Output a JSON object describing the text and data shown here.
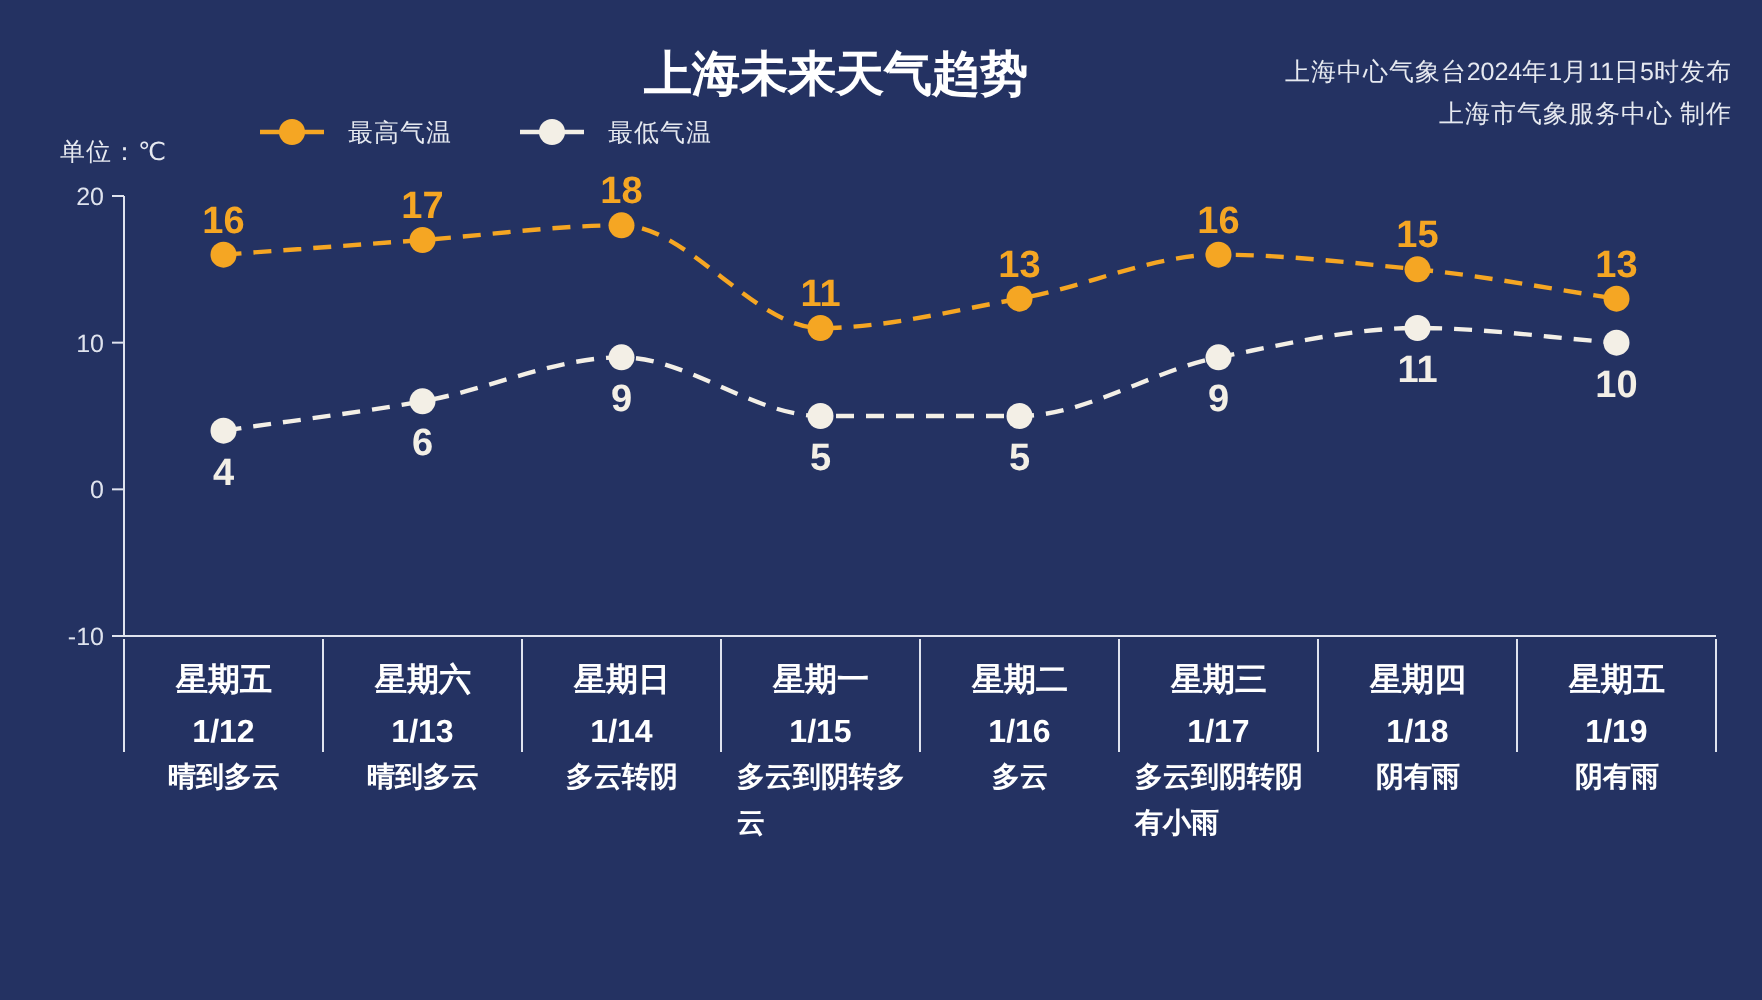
{
  "chart_data": {
    "type": "line",
    "title": "上海未来天气趋势",
    "subtitle": "上海中心气象台2024年1月11日5时发布",
    "annotations": [
      "上海市气象服务中心 制作"
    ],
    "ylabel": "单位：℃",
    "categories": [
      "星期五\n1/12\n晴到多云",
      "星期六\n1/13\n晴到多云",
      "星期日\n1/14\n多云转阴",
      "星期一\n1/15\n多云到阴转多云",
      "星期二\n1/16\n多云",
      "星期三\n1/17\n多云到阴转阴有小雨",
      "星期四\n1/18\n阴有雨",
      "星期五\n1/19\n阴有雨"
    ],
    "series": [
      {
        "name": "最高气温",
        "color": "#f5a623",
        "values": [
          16,
          17,
          18,
          11,
          13,
          16,
          15,
          13
        ]
      },
      {
        "name": "最低气温",
        "color": "#f3efe6",
        "values": [
          4,
          6,
          9,
          5,
          5,
          9,
          11,
          10
        ]
      }
    ],
    "ylim": [
      -10,
      20
    ],
    "yticks": [
      -10,
      0,
      10,
      20
    ],
    "legend": "top left",
    "marker": "circle",
    "line_style": "dashed",
    "data_labels": true
  }
}
